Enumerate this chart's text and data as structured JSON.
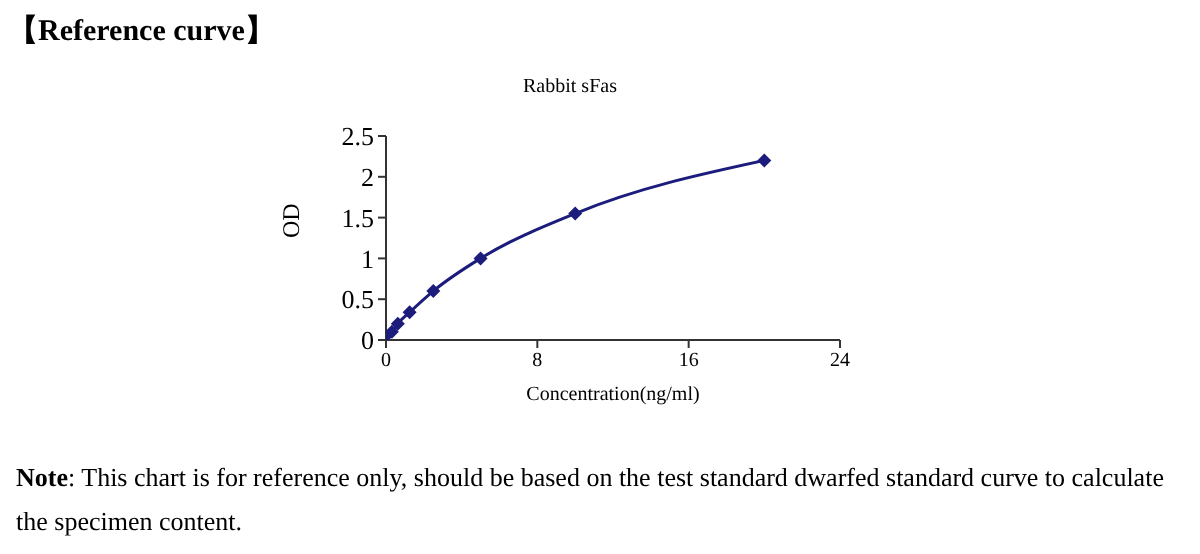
{
  "chart_data": {
    "type": "line",
    "title": "Rabbit sFas",
    "xlabel": "Concentration(ng/ml)",
    "ylabel": "OD",
    "x": [
      0,
      0.312,
      0.625,
      1.25,
      2.5,
      5,
      10,
      20
    ],
    "series": [
      {
        "color": "#1c1c7c",
        "values": [
          0.05,
          0.1,
          0.2,
          0.34,
          0.6,
          1.0,
          1.55,
          2.2
        ]
      }
    ],
    "xlim": [
      0,
      24
    ],
    "xticks": [
      0,
      8,
      16,
      24
    ],
    "ylim": [
      0,
      2.5
    ],
    "yticks": [
      0,
      0.5,
      1,
      1.5,
      2,
      2.5
    ],
    "grid": false,
    "legend": false,
    "marker": "diamond",
    "line_style": "solid",
    "annotations": [
      "【Reference curve】",
      "Note: This chart is for reference only, should be based on the test standard dwarfed standard curve to calculate the specimen content."
    ]
  }
}
